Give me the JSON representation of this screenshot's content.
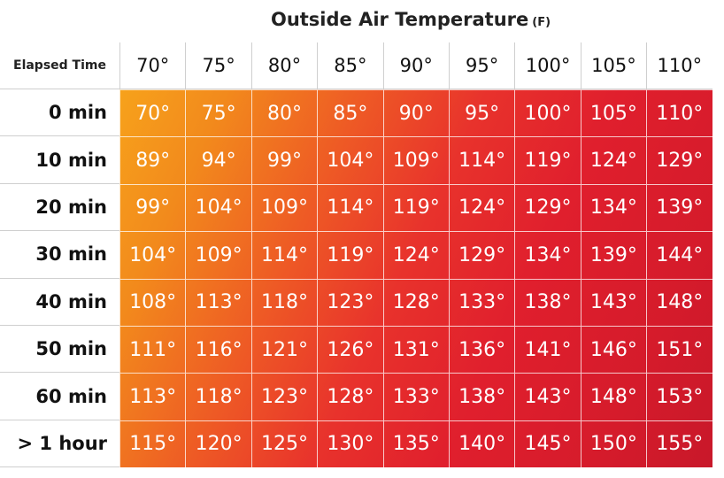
{
  "chart_data": {
    "type": "heatmap",
    "title": "Outside Air Temperature",
    "title_unit": "(F)",
    "row_header": "Elapsed Time",
    "columns": [
      "70°",
      "75°",
      "80°",
      "85°",
      "90°",
      "95°",
      "100°",
      "105°",
      "110°"
    ],
    "rows": [
      "0 min",
      "10 min",
      "20 min",
      "30 min",
      "40 min",
      "50 min",
      "60 min",
      "> 1 hour"
    ],
    "values": [
      [
        70,
        75,
        80,
        85,
        90,
        95,
        100,
        105,
        110
      ],
      [
        89,
        94,
        99,
        104,
        109,
        114,
        119,
        124,
        129
      ],
      [
        99,
        104,
        109,
        114,
        119,
        124,
        129,
        134,
        139
      ],
      [
        104,
        109,
        114,
        119,
        124,
        129,
        134,
        139,
        144
      ],
      [
        108,
        113,
        118,
        123,
        128,
        133,
        138,
        143,
        148
      ],
      [
        111,
        116,
        121,
        126,
        131,
        136,
        141,
        146,
        151
      ],
      [
        113,
        118,
        123,
        128,
        133,
        138,
        143,
        148,
        153
      ],
      [
        115,
        120,
        125,
        130,
        135,
        140,
        145,
        150,
        155
      ]
    ],
    "value_suffix": "°",
    "colors": {
      "low": "#f7a21b",
      "mid": "#ee5a25",
      "high": "#c8182a"
    }
  }
}
